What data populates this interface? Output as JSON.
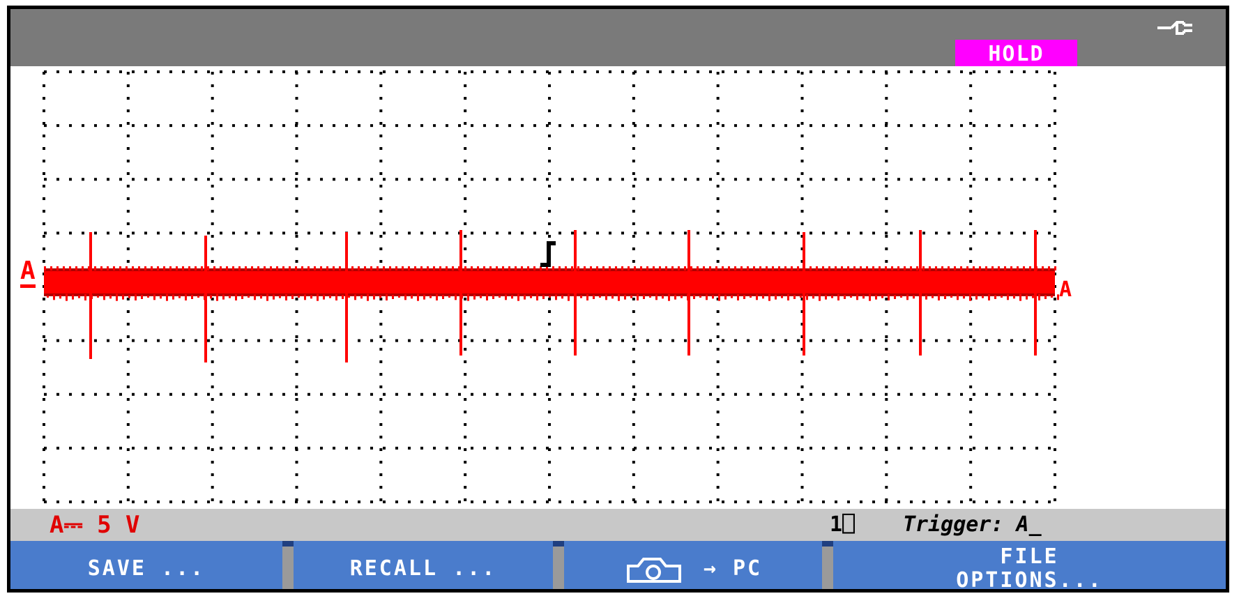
{
  "header": {
    "mode_badge": "HOLD",
    "connection_icon": "probe-connection-icon"
  },
  "channel": {
    "marker_left": "A",
    "marker_right": "A",
    "color": "#ff0000",
    "scale_label": "A⎓ 5 V"
  },
  "status": {
    "count": "1⎕",
    "trigger_label": "Trigger: A̲"
  },
  "softkeys": [
    {
      "label": "SAVE ..."
    },
    {
      "label": "RECALL ..."
    },
    {
      "label": "→ PC",
      "icon": "camera-icon"
    },
    {
      "label_line1": "FILE",
      "label_line2": "OPTIONS..."
    }
  ],
  "colors": {
    "topbar": "#7a7a7a",
    "badge": "#ff00ff",
    "trace": "#ff0000",
    "softkey": "#4a7ccc",
    "statusbar": "#c8c8c8"
  }
}
